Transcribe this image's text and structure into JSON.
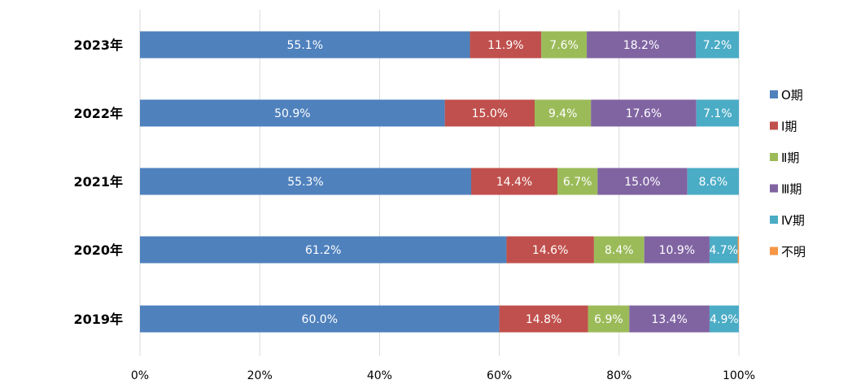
{
  "chart_data": {
    "type": "bar",
    "orientation": "horizontal",
    "stacked": "percent",
    "categories": [
      "2023年",
      "2022年",
      "2021年",
      "2020年",
      "2019年"
    ],
    "series": [
      {
        "name": "O期",
        "color": "#4F81BD",
        "values": [
          55.1,
          50.9,
          55.3,
          61.2,
          60.0
        ],
        "labels": [
          "55.1%",
          "50.9%",
          "55.3%",
          "61.2%",
          "60.0%"
        ]
      },
      {
        "name": "Ⅰ期",
        "color": "#C0504D",
        "values": [
          11.9,
          15.0,
          14.4,
          14.6,
          14.8
        ],
        "labels": [
          "11.9%",
          "15.0%",
          "14.4%",
          "14.6%",
          "14.8%"
        ]
      },
      {
        "name": "Ⅱ期",
        "color": "#9BBB59",
        "values": [
          7.6,
          9.4,
          6.7,
          8.4,
          6.9
        ],
        "labels": [
          "7.6%",
          "9.4%",
          "6.7%",
          "8.4%",
          "6.9%"
        ]
      },
      {
        "name": "Ⅲ期",
        "color": "#8064A2",
        "values": [
          18.2,
          17.6,
          15.0,
          10.9,
          13.4
        ],
        "labels": [
          "18.2%",
          "17.6%",
          "15.0%",
          "10.9%",
          "13.4%"
        ]
      },
      {
        "name": "Ⅳ期",
        "color": "#4BACC6",
        "values": [
          7.2,
          7.1,
          8.6,
          4.7,
          4.9
        ],
        "labels": [
          "7.2%",
          "7.1%",
          "8.6%",
          "4.7%",
          "4.9%"
        ]
      },
      {
        "name": "不明",
        "color": "#F79646",
        "values": [
          0.0,
          0.0,
          0.0,
          0.2,
          0.0
        ],
        "labels": [
          "",
          "",
          "",
          "",
          ""
        ]
      }
    ],
    "x_ticks": [
      "0%",
      "20%",
      "40%",
      "60%",
      "80%",
      "100%"
    ],
    "xlim": [
      0,
      100
    ],
    "grid": true,
    "legend_position": "right",
    "title": "",
    "xlabel": "",
    "ylabel": ""
  }
}
